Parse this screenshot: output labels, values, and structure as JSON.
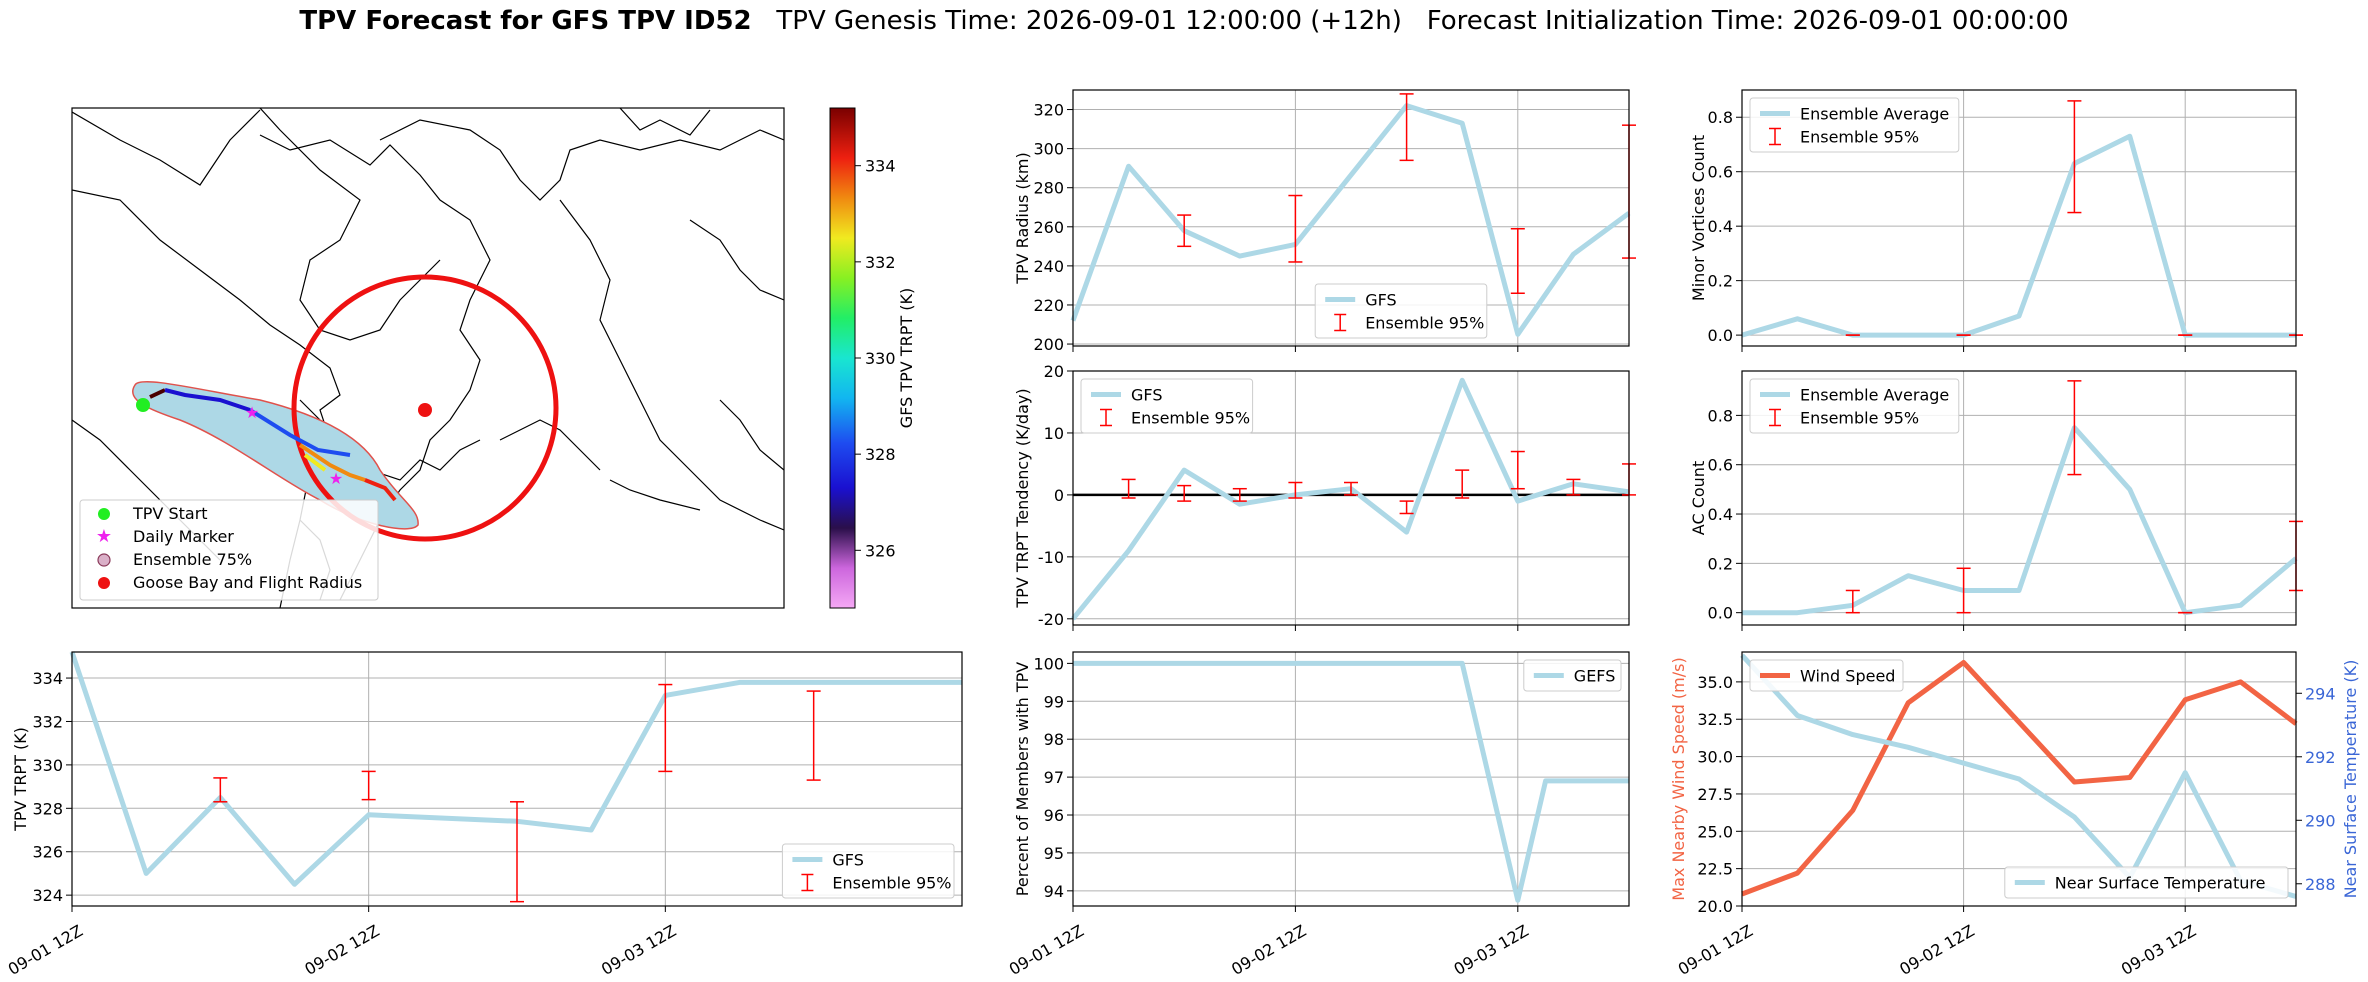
{
  "title": {
    "main": "TPV Forecast for GFS TPV ID52",
    "genesis": "TPV Genesis Time: 2026-09-01 12:00:00 (+12h)",
    "init": "Forecast Initialization Time: 2026-09-01 00:00:00"
  },
  "colors": {
    "gfs_line": "#add8e6",
    "error_bar": "#ff0000",
    "wind": "#f26444",
    "right_axis": "#3a66d6",
    "start_marker": "#22ee22",
    "daily_marker": "#ee22ee",
    "goose_bay": "#ee1111"
  },
  "chart_data": [
    {
      "id": "map",
      "type": "map",
      "legend": [
        "TPV Start",
        "Daily Marker",
        "Ensemble 75%",
        "Goose Bay and Flight Radius"
      ],
      "legend_position": "lower-left",
      "colorbar": {
        "label": "GFS TPV TRPT (K)",
        "range": [
          324.8,
          335.2
        ],
        "ticks": [
          326,
          328,
          330,
          332,
          334
        ],
        "colormap": "gist_ncar_r"
      }
    },
    {
      "id": "trpt",
      "type": "line",
      "ylabel": "TPV TRPT (K)",
      "ylim": [
        323.5,
        335.2
      ],
      "yticks": [
        324,
        326,
        328,
        330,
        332,
        334
      ],
      "xlim": [
        0,
        24
      ],
      "xticks": [
        {
          "x": 0,
          "label": "09-01 12Z"
        },
        {
          "x": 8,
          "label": "09-02 12Z"
        },
        {
          "x": 16,
          "label": "09-03 12Z"
        }
      ],
      "series": [
        {
          "name": "GFS",
          "x": [
            0,
            2,
            4,
            6,
            8,
            12,
            14,
            16,
            18,
            20,
            22,
            24
          ],
          "values": [
            335.2,
            325.0,
            328.5,
            324.5,
            327.7,
            327.4,
            327.0,
            333.2,
            333.8,
            333.8,
            333.8,
            333.8
          ]
        }
      ],
      "error_bars": [
        {
          "x": 4,
          "low": 328.3,
          "high": 329.4
        },
        {
          "x": 8,
          "low": 328.4,
          "high": 329.7
        },
        {
          "x": 12,
          "low": 323.7,
          "high": 328.3
        },
        {
          "x": 16,
          "low": 329.7,
          "high": 333.7
        },
        {
          "x": 20,
          "low": 329.3,
          "high": 333.4
        }
      ],
      "legend": [
        "GFS",
        "Ensemble 95%"
      ],
      "legend_position": "lower-right",
      "grid": true
    },
    {
      "id": "radius",
      "type": "line",
      "ylabel": "TPV Radius (km)",
      "ylim": [
        199,
        330
      ],
      "yticks": [
        200,
        220,
        240,
        260,
        280,
        300,
        320
      ],
      "xlim": [
        0,
        20
      ],
      "series": [
        {
          "name": "GFS",
          "x": [
            0,
            2,
            4,
            6,
            8,
            12,
            14,
            16,
            18,
            20
          ],
          "values": [
            212,
            291,
            258,
            245,
            251,
            322,
            313,
            205,
            246,
            267
          ]
        }
      ],
      "error_bars": [
        {
          "x": 4,
          "low": 250,
          "high": 266
        },
        {
          "x": 8,
          "low": 242,
          "high": 276
        },
        {
          "x": 12,
          "low": 294,
          "high": 328
        },
        {
          "x": 16,
          "low": 226,
          "high": 259
        },
        {
          "x": 20,
          "low": 244,
          "high": 312
        }
      ],
      "legend": [
        "GFS",
        "Ensemble 95%"
      ],
      "legend_position": "lower-center",
      "grid": true
    },
    {
      "id": "tendency",
      "type": "line",
      "ylabel": "TPV TRPT Tendency (K/day)",
      "ylim": [
        -21,
        20
      ],
      "yticks": [
        -20,
        -10,
        0,
        10,
        20
      ],
      "xlim": [
        0,
        20
      ],
      "zero_line": true,
      "series": [
        {
          "name": "GFS",
          "x": [
            0,
            2,
            4,
            6,
            8,
            10,
            12,
            14,
            16,
            18,
            20
          ],
          "values": [
            -20,
            -9,
            4,
            -1.5,
            0,
            1,
            -6,
            18.5,
            -1,
            1.8,
            0.5
          ]
        }
      ],
      "error_bars": [
        {
          "x": 2,
          "low": -0.5,
          "high": 2.5
        },
        {
          "x": 4,
          "low": -1,
          "high": 1.5
        },
        {
          "x": 6,
          "low": -1,
          "high": 1
        },
        {
          "x": 8,
          "low": -0.5,
          "high": 2
        },
        {
          "x": 10,
          "low": 0,
          "high": 2
        },
        {
          "x": 12,
          "low": -3,
          "high": -1
        },
        {
          "x": 14,
          "low": -0.5,
          "high": 4
        },
        {
          "x": 16,
          "low": 1,
          "high": 7
        },
        {
          "x": 18,
          "low": 0,
          "high": 2.5
        },
        {
          "x": 20,
          "low": 0,
          "high": 5
        }
      ],
      "legend": [
        "GFS",
        "Ensemble 95%"
      ],
      "legend_position": "upper-left",
      "grid": true
    },
    {
      "id": "members",
      "type": "line",
      "ylabel": "Percent of Members with TPV",
      "ylim": [
        93.6,
        100.3
      ],
      "yticks": [
        94,
        95,
        96,
        97,
        98,
        99,
        100
      ],
      "xlim": [
        0,
        20
      ],
      "xticks": [
        {
          "x": 0,
          "label": "09-01 12Z"
        },
        {
          "x": 8,
          "label": "09-02 12Z"
        },
        {
          "x": 16,
          "label": "09-03 12Z"
        }
      ],
      "series": [
        {
          "name": "GEFS",
          "x": [
            0,
            14,
            16,
            17,
            20
          ],
          "values": [
            100,
            100,
            93.75,
            96.9,
            96.9
          ]
        }
      ],
      "legend": [
        "GEFS"
      ],
      "legend_position": "upper-right",
      "grid": true
    },
    {
      "id": "minor",
      "type": "line",
      "ylabel": "Minor Vortices Count",
      "ylim": [
        -0.04,
        0.9
      ],
      "yticks": [
        0.0,
        0.2,
        0.4,
        0.6,
        0.8
      ],
      "xlim": [
        0,
        20
      ],
      "series": [
        {
          "name": "Ensemble Average",
          "x": [
            0,
            2,
            4,
            6,
            8,
            10,
            12,
            14,
            16,
            18,
            20
          ],
          "values": [
            0,
            0.06,
            0,
            0,
            0,
            0.07,
            0.63,
            0.73,
            0,
            0,
            0
          ]
        }
      ],
      "error_bars": [
        {
          "x": 4,
          "low": 0,
          "high": 0
        },
        {
          "x": 8,
          "low": 0,
          "high": 0
        },
        {
          "x": 12,
          "low": 0.45,
          "high": 0.86
        },
        {
          "x": 16,
          "low": 0,
          "high": 0
        },
        {
          "x": 20,
          "low": 0,
          "high": 0
        }
      ],
      "legend": [
        "Ensemble Average",
        "Ensemble 95%"
      ],
      "legend_position": "upper-left",
      "grid": true
    },
    {
      "id": "ac",
      "type": "line",
      "ylabel": "AC Count",
      "ylim": [
        -0.05,
        0.98
      ],
      "yticks": [
        0.0,
        0.2,
        0.4,
        0.6,
        0.8
      ],
      "xlim": [
        0,
        20
      ],
      "series": [
        {
          "name": "Ensemble Average",
          "x": [
            0,
            2,
            4,
            6,
            8,
            10,
            12,
            14,
            16,
            18,
            20
          ],
          "values": [
            0,
            0,
            0.03,
            0.15,
            0.09,
            0.09,
            0.75,
            0.5,
            0,
            0.03,
            0.22
          ]
        }
      ],
      "error_bars": [
        {
          "x": 4,
          "low": 0,
          "high": 0.09
        },
        {
          "x": 8,
          "low": 0,
          "high": 0.18
        },
        {
          "x": 12,
          "low": 0.56,
          "high": 0.94
        },
        {
          "x": 16,
          "low": 0,
          "high": 0
        },
        {
          "x": 20,
          "low": 0.09,
          "high": 0.37
        }
      ],
      "legend": [
        "Ensemble Average",
        "Ensemble 95%"
      ],
      "legend_position": "upper-left",
      "grid": true
    },
    {
      "id": "wind",
      "type": "line",
      "ylabel": "Max Nearby Wind Speed (m/s)",
      "ylabel_right": "Near Surface Temperature (K)",
      "ylim": [
        20,
        37
      ],
      "yticks": [
        20.0,
        22.5,
        25.0,
        27.5,
        30.0,
        32.5,
        35.0
      ],
      "ylim_right": [
        287.3,
        295.3
      ],
      "yticks_right": [
        288,
        290,
        292,
        294
      ],
      "xlim": [
        0,
        20
      ],
      "xticks": [
        {
          "x": 0,
          "label": "09-01 12Z"
        },
        {
          "x": 8,
          "label": "09-02 12Z"
        },
        {
          "x": 16,
          "label": "09-03 12Z"
        }
      ],
      "series": [
        {
          "name": "Wind Speed",
          "axis": "left",
          "x": [
            0,
            2,
            4,
            6,
            8,
            10,
            12,
            14,
            16,
            18,
            20
          ],
          "values": [
            20.8,
            22.2,
            26.4,
            33.6,
            36.3,
            32.3,
            28.3,
            28.6,
            33.8,
            35.0,
            32.2
          ]
        },
        {
          "name": "Near Surface Temperature",
          "axis": "right",
          "x": [
            0,
            2,
            4,
            6,
            8,
            10,
            12,
            14,
            16,
            18,
            20
          ],
          "values": [
            295.2,
            293.3,
            292.7,
            292.3,
            291.8,
            291.3,
            290.1,
            288.2,
            291.5,
            288.1,
            287.6
          ]
        }
      ],
      "legend_left": [
        "Wind Speed"
      ],
      "legend_right": [
        "Near Surface Temperature"
      ],
      "grid": true
    }
  ]
}
